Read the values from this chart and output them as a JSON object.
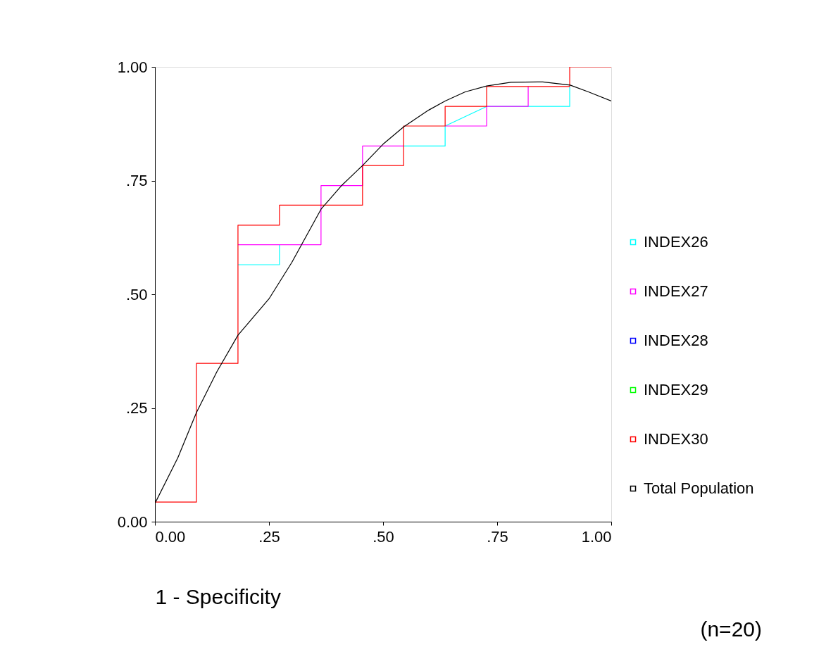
{
  "chart_data": {
    "type": "line",
    "xlabel": "1 - Specificity",
    "annotations": [
      "(n=20)"
    ],
    "xlim": [
      0,
      1
    ],
    "ylim": [
      0,
      1
    ],
    "xticks": [
      {
        "value": 0,
        "label": "0.00"
      },
      {
        "value": 0.25,
        "label": ".25"
      },
      {
        "value": 0.5,
        "label": ".50"
      },
      {
        "value": 0.75,
        "label": ".75"
      },
      {
        "value": 1,
        "label": "1.00"
      }
    ],
    "yticks": [
      {
        "value": 0,
        "label": "0.00"
      },
      {
        "value": 0.25,
        "label": ".25"
      },
      {
        "value": 0.5,
        "label": ".50"
      },
      {
        "value": 0.75,
        "label": ".75"
      },
      {
        "value": 1,
        "label": "1.00"
      }
    ],
    "grid": false,
    "legend": "right",
    "marker": "none",
    "line_style": "solid",
    "series": [
      {
        "name": "INDEX26",
        "color": "#00ffff",
        "x": [
          0.182,
          0.273,
          0.273,
          null,
          0.545,
          0.636,
          0.636,
          0.727,
          0.818,
          0.909,
          0.909
        ],
        "values": [
          0.565,
          0.565,
          0.609,
          null,
          0.826,
          0.826,
          0.87,
          0.913,
          0.913,
          0.913,
          0.957
        ]
      },
      {
        "name": "INDEX27",
        "color": "#ff00ff",
        "x": [
          0.182,
          0.364,
          0.364,
          0.455,
          0.455,
          0.545,
          null,
          0.636,
          0.727,
          0.727,
          0.818,
          0.818
        ],
        "values": [
          0.609,
          0.609,
          0.739,
          0.739,
          0.826,
          0.826,
          null,
          0.87,
          0.87,
          0.913,
          0.913,
          0.957
        ]
      },
      {
        "name": "INDEX28",
        "color": "#0000ff"
      },
      {
        "name": "INDEX29",
        "color": "#00ff00"
      },
      {
        "name": "INDEX30",
        "color": "#ff0000",
        "x": [
          0,
          0.091,
          0.091,
          0.182,
          0.182,
          0.273,
          0.273,
          0.455,
          0.455,
          0.545,
          0.545,
          0.636,
          0.636,
          0.727,
          0.727,
          0.909,
          0.909,
          1
        ],
        "values": [
          0.043,
          0.043,
          0.348,
          0.348,
          0.652,
          0.652,
          0.696,
          0.696,
          0.783,
          0.783,
          0.87,
          0.87,
          0.913,
          0.913,
          0.957,
          0.957,
          1,
          1
        ]
      },
      {
        "name": "Total Population",
        "color": "#000000",
        "x": [
          0,
          0.05,
          0.091,
          0.136,
          0.182,
          0.25,
          0.3,
          0.364,
          0.41,
          0.455,
          0.5,
          0.545,
          0.6,
          0.636,
          0.68,
          0.727,
          0.78,
          0.85,
          0.91,
          0.95,
          1
        ],
        "values": [
          0.04,
          0.14,
          0.24,
          0.33,
          0.41,
          0.49,
          0.57,
          0.687,
          0.74,
          0.783,
          0.83,
          0.868,
          0.905,
          0.925,
          0.945,
          0.958,
          0.966,
          0.967,
          0.96,
          0.945,
          0.925
        ]
      }
    ]
  }
}
